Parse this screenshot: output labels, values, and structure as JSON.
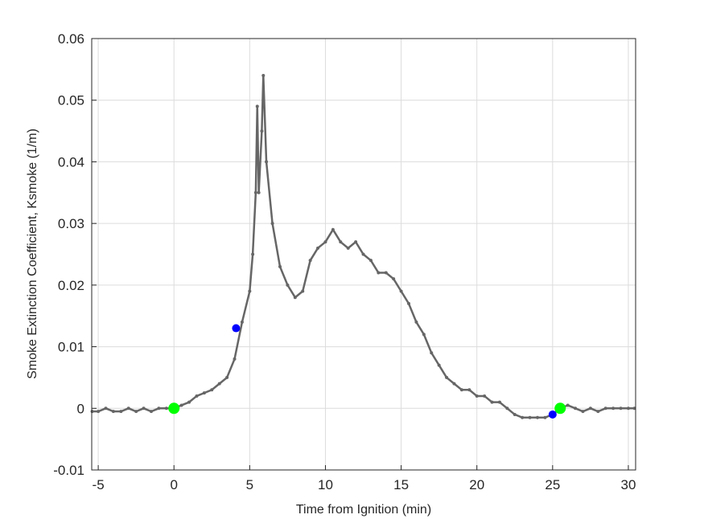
{
  "chart_data": {
    "type": "line",
    "xlabel": "Time from Ignition (min)",
    "ylabel": "Smoke Extinction Coefficient, Ksmoke (1/m)",
    "xlim": [
      -5.43,
      30.48
    ],
    "ylim": [
      -0.01,
      0.06
    ],
    "xticks": [
      -5,
      0,
      5,
      10,
      15,
      20,
      25,
      30
    ],
    "yticks": [
      -0.01,
      0,
      0.01,
      0.02,
      0.03,
      0.04,
      0.05,
      0.06
    ],
    "grid": true,
    "series": [
      {
        "color": "#666666",
        "style": "line",
        "x": [
          -5.4,
          -5,
          -4.5,
          -4,
          -3.5,
          -3,
          -2.5,
          -2,
          -1.5,
          -1,
          -0.5,
          0,
          0.5,
          1,
          1.5,
          2,
          2.5,
          3,
          3.5,
          4,
          4.5,
          5,
          5.2,
          5.4,
          5.5,
          5.6,
          5.8,
          5.9,
          6.1,
          6.5,
          7,
          7.5,
          8,
          8.5,
          9,
          9.5,
          10,
          10.5,
          11,
          11.5,
          12,
          12.5,
          13,
          13.5,
          14,
          14.5,
          15,
          15.5,
          16,
          16.5,
          17,
          17.5,
          18,
          18.5,
          19,
          19.5,
          20,
          20.5,
          21,
          21.5,
          22,
          22.5,
          23,
          23.5,
          24,
          24.5,
          25,
          25.5,
          26,
          26.5,
          27,
          27.5,
          28,
          28.5,
          29,
          29.5,
          30,
          30.4
        ],
        "values": [
          -0.0005,
          -0.0005,
          0,
          -0.0005,
          -0.0005,
          0,
          -0.0005,
          0,
          -0.0005,
          0,
          0,
          0,
          0.0005,
          0.001,
          0.002,
          0.0025,
          0.003,
          0.004,
          0.005,
          0.008,
          0.014,
          0.019,
          0.025,
          0.035,
          0.049,
          0.035,
          0.045,
          0.054,
          0.04,
          0.03,
          0.023,
          0.02,
          0.018,
          0.019,
          0.024,
          0.026,
          0.027,
          0.029,
          0.027,
          0.026,
          0.027,
          0.025,
          0.024,
          0.022,
          0.022,
          0.021,
          0.019,
          0.017,
          0.014,
          0.012,
          0.009,
          0.007,
          0.005,
          0.004,
          0.003,
          0.003,
          0.002,
          0.002,
          0.001,
          0.001,
          0,
          -0.001,
          -0.0015,
          -0.0015,
          -0.0015,
          -0.0015,
          -0.001,
          0,
          0.0005,
          0,
          -0.0005,
          0,
          -0.0005,
          0,
          0,
          0,
          0,
          0
        ]
      },
      {
        "color": "#0000ff",
        "style": "points",
        "x": [
          4.1,
          25
        ],
        "values": [
          0.013,
          -0.001
        ]
      },
      {
        "color": "#00ff00",
        "style": "points",
        "x": [
          0,
          25.5
        ],
        "values": [
          0,
          0
        ]
      }
    ]
  }
}
